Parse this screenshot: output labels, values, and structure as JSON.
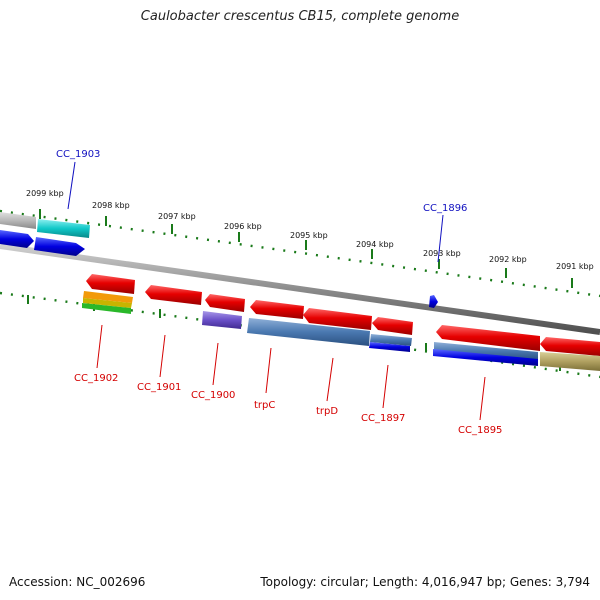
{
  "title": "Caulobacter crescentus CB15, complete genome",
  "footer": {
    "accession": "Accession: NC_002696",
    "summary": "Topology: circular; Length: 4,016,947 bp; Genes: 3,794"
  },
  "scale_labels": [
    "2099 kbp",
    "2098 kbp",
    "2097 kbp",
    "2096 kbp",
    "2095 kbp",
    "2094 kbp",
    "2093 kbp",
    "2092 kbp",
    "2091 kbp"
  ],
  "genes_forward": [
    "CC_1903",
    "CC_1896"
  ],
  "genes_reverse": [
    "CC_1902",
    "CC_1901",
    "CC_1900",
    "trpC",
    "trpD",
    "CC_1897",
    "CC_1895"
  ],
  "colors": {
    "gene": "#e60000",
    "backbone": "#8c8c8c",
    "tick": "#1a7a1a",
    "label_forward": "#1010c0",
    "label_reverse": "#d40000"
  }
}
